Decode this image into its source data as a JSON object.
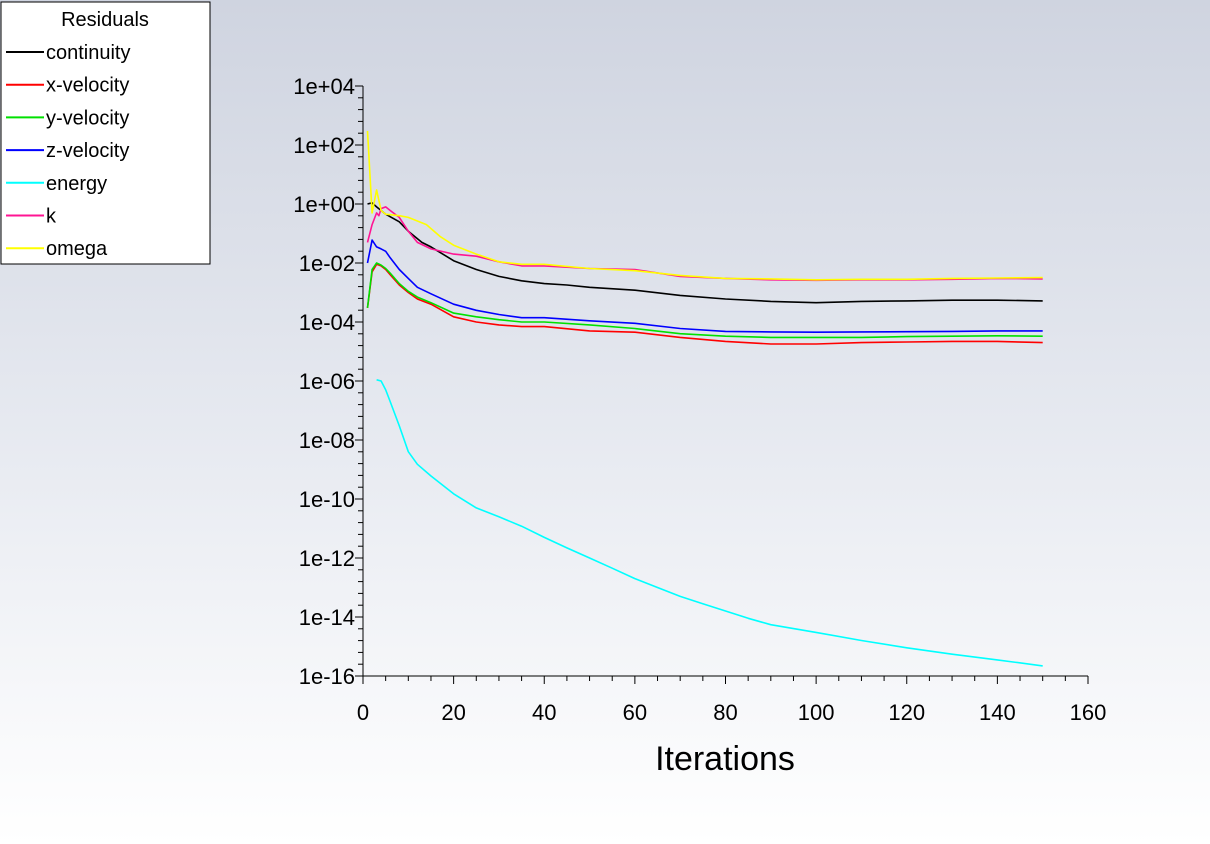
{
  "chart_data": {
    "type": "line",
    "title": "",
    "xlabel": "Iterations",
    "ylabel": "",
    "y_scale": "log",
    "xlim": [
      0,
      160
    ],
    "ylim": [
      1e-16,
      10000.0
    ],
    "x_ticks": [
      "0",
      "20",
      "40",
      "60",
      "80",
      "100",
      "120",
      "140",
      "160"
    ],
    "y_ticks": [
      "1e-16",
      "1e-14",
      "1e-12",
      "1e-10",
      "1e-08",
      "1e-06",
      "1e-04",
      "1e-02",
      "1e+00",
      "1e+02",
      "1e+04"
    ],
    "legend_title": "Residuals",
    "legend_position": "top-left",
    "grid": false,
    "series": [
      {
        "name": "continuity",
        "color": "#000000",
        "points": [
          [
            1,
            1
          ],
          [
            2,
            1.1
          ],
          [
            3,
            0.8
          ],
          [
            5,
            0.45
          ],
          [
            8,
            0.25
          ],
          [
            10,
            0.12
          ],
          [
            13,
            0.05
          ],
          [
            15,
            0.035
          ],
          [
            20,
            0.012
          ],
          [
            25,
            0.006
          ],
          [
            30,
            0.0035
          ],
          [
            35,
            0.0025
          ],
          [
            40,
            0.002
          ],
          [
            45,
            0.0018
          ],
          [
            50,
            0.0015
          ],
          [
            60,
            0.0012
          ],
          [
            70,
            0.0008
          ],
          [
            80,
            0.0006
          ],
          [
            90,
            0.0005
          ],
          [
            100,
            0.00045
          ],
          [
            110,
            0.0005
          ],
          [
            120,
            0.00052
          ],
          [
            130,
            0.00055
          ],
          [
            140,
            0.00055
          ],
          [
            150,
            0.00052
          ]
        ]
      },
      {
        "name": "x-velocity",
        "color": "#ff0000",
        "points": [
          [
            1,
            0.0003
          ],
          [
            2,
            0.005
          ],
          [
            3,
            0.009
          ],
          [
            4,
            0.008
          ],
          [
            5,
            0.006
          ],
          [
            6,
            0.004
          ],
          [
            8,
            0.0018
          ],
          [
            10,
            0.001
          ],
          [
            12,
            0.0006
          ],
          [
            15,
            0.0004
          ],
          [
            20,
            0.00015
          ],
          [
            25,
            0.0001
          ],
          [
            30,
            8e-05
          ],
          [
            35,
            7e-05
          ],
          [
            40,
            7e-05
          ],
          [
            50,
            5e-05
          ],
          [
            60,
            4.5e-05
          ],
          [
            70,
            3e-05
          ],
          [
            80,
            2.2e-05
          ],
          [
            90,
            1.8e-05
          ],
          [
            100,
            1.8e-05
          ],
          [
            110,
            2e-05
          ],
          [
            120,
            2.1e-05
          ],
          [
            130,
            2.2e-05
          ],
          [
            140,
            2.2e-05
          ],
          [
            150,
            2e-05
          ]
        ]
      },
      {
        "name": "y-velocity",
        "color": "#00e000",
        "points": [
          [
            1,
            0.0003
          ],
          [
            2,
            0.006
          ],
          [
            3,
            0.01
          ],
          [
            4,
            0.0085
          ],
          [
            5,
            0.0065
          ],
          [
            6,
            0.0045
          ],
          [
            8,
            0.002
          ],
          [
            10,
            0.0011
          ],
          [
            12,
            0.0007
          ],
          [
            15,
            0.00045
          ],
          [
            20,
            0.0002
          ],
          [
            25,
            0.00015
          ],
          [
            30,
            0.00012
          ],
          [
            35,
            0.0001
          ],
          [
            40,
            0.0001
          ],
          [
            50,
            8e-05
          ],
          [
            60,
            6e-05
          ],
          [
            70,
            4e-05
          ],
          [
            80,
            3.3e-05
          ],
          [
            90,
            3e-05
          ],
          [
            100,
            3e-05
          ],
          [
            110,
            3e-05
          ],
          [
            120,
            3.2e-05
          ],
          [
            130,
            3.3e-05
          ],
          [
            140,
            3.4e-05
          ],
          [
            150,
            3.3e-05
          ]
        ]
      },
      {
        "name": "z-velocity",
        "color": "#0000ff",
        "points": [
          [
            1,
            0.01
          ],
          [
            2,
            0.06
          ],
          [
            3,
            0.035
          ],
          [
            4,
            0.03
          ],
          [
            5,
            0.025
          ],
          [
            6,
            0.015
          ],
          [
            8,
            0.006
          ],
          [
            10,
            0.003
          ],
          [
            12,
            0.0015
          ],
          [
            15,
            0.0009
          ],
          [
            20,
            0.0004
          ],
          [
            25,
            0.00025
          ],
          [
            30,
            0.00018
          ],
          [
            35,
            0.00014
          ],
          [
            40,
            0.00014
          ],
          [
            50,
            0.00011
          ],
          [
            60,
            9e-05
          ],
          [
            70,
            6e-05
          ],
          [
            80,
            4.8e-05
          ],
          [
            90,
            4.6e-05
          ],
          [
            100,
            4.5e-05
          ],
          [
            110,
            4.6e-05
          ],
          [
            120,
            4.7e-05
          ],
          [
            130,
            4.8e-05
          ],
          [
            140,
            5e-05
          ],
          [
            150,
            5e-05
          ]
        ]
      },
      {
        "name": "energy",
        "color": "#00ffff",
        "points": [
          [
            3,
            1.1e-06
          ],
          [
            4,
            1e-06
          ],
          [
            5,
            5e-07
          ],
          [
            6,
            2e-07
          ],
          [
            8,
            3e-08
          ],
          [
            10,
            4e-09
          ],
          [
            12,
            1.5e-09
          ],
          [
            15,
            6e-10
          ],
          [
            20,
            1.5e-10
          ],
          [
            25,
            5e-11
          ],
          [
            30,
            2.5e-11
          ],
          [
            35,
            1.2e-11
          ],
          [
            40,
            5e-12
          ],
          [
            45,
            2.2e-12
          ],
          [
            50,
            1e-12
          ],
          [
            55,
            4.5e-13
          ],
          [
            60,
            2e-13
          ],
          [
            65,
            1e-13
          ],
          [
            70,
            5e-14
          ],
          [
            75,
            2.8e-14
          ],
          [
            80,
            1.6e-14
          ],
          [
            85,
            9e-15
          ],
          [
            90,
            5.5e-15
          ],
          [
            100,
            3e-15
          ],
          [
            110,
            1.6e-15
          ],
          [
            120,
            9e-16
          ],
          [
            130,
            5.5e-16
          ],
          [
            140,
            3.5e-16
          ],
          [
            150,
            2.2e-16
          ]
        ]
      },
      {
        "name": "k",
        "color": "#ff1493",
        "points": [
          [
            1,
            0.05
          ],
          [
            2,
            0.2
          ],
          [
            3,
            0.5
          ],
          [
            3.5,
            0.4
          ],
          [
            4,
            0.7
          ],
          [
            5,
            0.8
          ],
          [
            6,
            0.6
          ],
          [
            8,
            0.35
          ],
          [
            10,
            0.12
          ],
          [
            12,
            0.05
          ],
          [
            15,
            0.03
          ],
          [
            20,
            0.02
          ],
          [
            25,
            0.017
          ],
          [
            30,
            0.011
          ],
          [
            35,
            0.008
          ],
          [
            40,
            0.008
          ],
          [
            50,
            0.0065
          ],
          [
            60,
            0.006
          ],
          [
            70,
            0.0035
          ],
          [
            80,
            0.003
          ],
          [
            90,
            0.0027
          ],
          [
            100,
            0.0026
          ],
          [
            110,
            0.0027
          ],
          [
            120,
            0.0027
          ],
          [
            130,
            0.0028
          ],
          [
            140,
            0.003
          ],
          [
            150,
            0.0029
          ]
        ]
      },
      {
        "name": "omega",
        "color": "#ffff00",
        "points": [
          [
            1,
            300
          ],
          [
            2,
            0.5
          ],
          [
            3,
            3
          ],
          [
            4,
            0.6
          ],
          [
            5,
            0.45
          ],
          [
            8,
            0.4
          ],
          [
            10,
            0.35
          ],
          [
            14,
            0.2
          ],
          [
            17,
            0.08
          ],
          [
            20,
            0.04
          ],
          [
            25,
            0.02
          ],
          [
            30,
            0.011
          ],
          [
            35,
            0.009
          ],
          [
            40,
            0.009
          ],
          [
            50,
            0.0065
          ],
          [
            60,
            0.0055
          ],
          [
            70,
            0.0038
          ],
          [
            80,
            0.003
          ],
          [
            90,
            0.0029
          ],
          [
            100,
            0.0027
          ],
          [
            110,
            0.0028
          ],
          [
            120,
            0.0028
          ],
          [
            130,
            0.003
          ],
          [
            140,
            0.0031
          ],
          [
            150,
            0.0032
          ]
        ]
      }
    ]
  }
}
